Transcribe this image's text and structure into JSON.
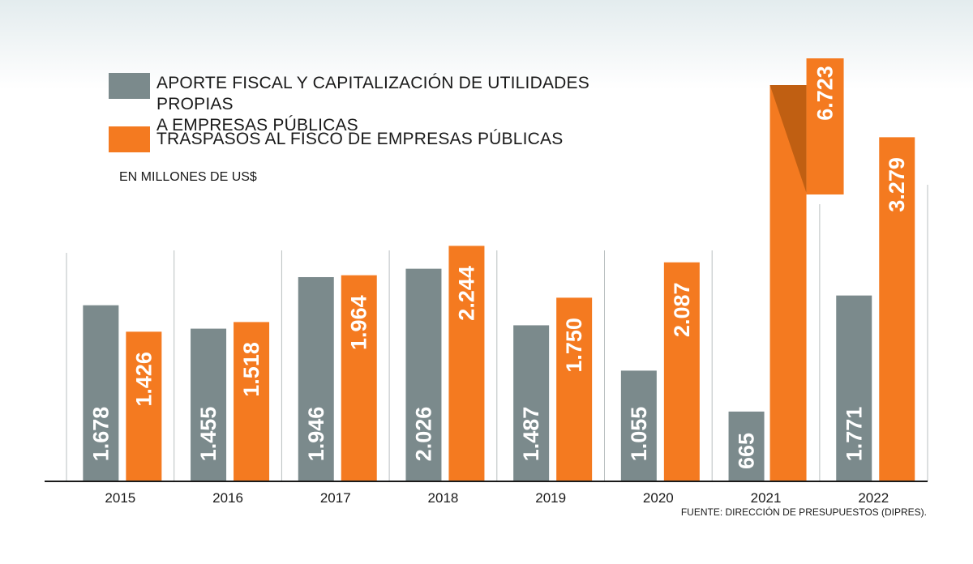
{
  "legend": {
    "gray_label_line1": "APORTE FISCAL Y CAPITALIZACIÓN DE UTILIDADES PROPIAS",
    "gray_label_line2": "A EMPRESAS PÚBLICAS",
    "orange_label": "TRASPASOS AL FISCO DE EMPRESAS PÚBLICAS"
  },
  "unit": "EN MILLONES DE US$",
  "source": "FUENTE: DIRECCIÓN DE PRESUPUESTOS (DIPRES).",
  "colors": {
    "gray": "#7b8a8c",
    "orange": "#f47a20",
    "orange_dark": "#c05f12",
    "separator": "#b9bfc0",
    "axis": "#1a1a1a"
  },
  "chart_data": {
    "type": "bar",
    "categories": [
      "2015",
      "2016",
      "2017",
      "2018",
      "2019",
      "2020",
      "2021",
      "2022"
    ],
    "series": [
      {
        "name": "APORTE FISCAL Y CAPITALIZACIÓN DE UTILIDADES PROPIAS A EMPRESAS PÚBLICAS",
        "values": [
          1678,
          1455,
          1946,
          2026,
          1487,
          1055,
          665,
          1771
        ],
        "labels": [
          "1.678",
          "1.455",
          "1.946",
          "2.026",
          "1.487",
          "1.055",
          "665",
          "1.771"
        ]
      },
      {
        "name": "TRASPASOS AL FISCO DE EMPRESAS PÚBLICAS",
        "values": [
          1426,
          1518,
          1964,
          2244,
          1750,
          2087,
          6723,
          3279
        ],
        "labels": [
          "1.426",
          "1.518",
          "1.964",
          "2.244",
          "1.750",
          "2.087",
          "6.723",
          "3.279"
        ]
      }
    ],
    "ylabel": "EN MILLONES DE US$",
    "ylim": [
      0,
      3600
    ],
    "axis_break": "2021 orange bar truncated with break",
    "grid": false,
    "legend_position": "top-left"
  }
}
